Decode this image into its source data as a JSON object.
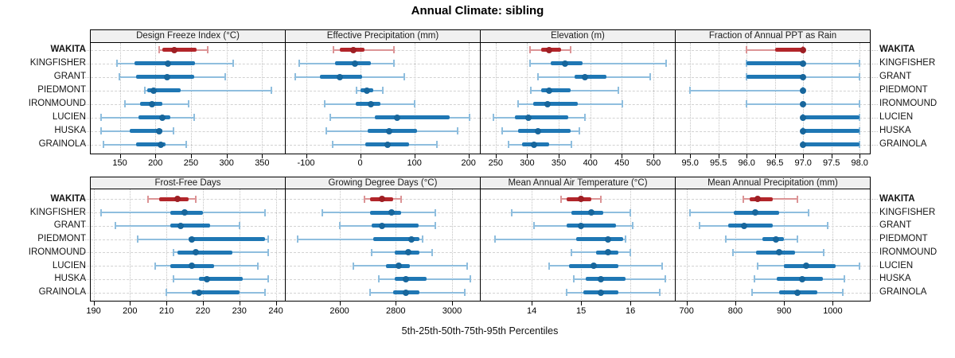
{
  "chart_data": {
    "type": "dotplot",
    "title": "Annual Climate: sibling",
    "caption": "5th-25th-50th-75th-95th Percentiles",
    "percentiles": [
      5,
      25,
      50,
      75,
      95
    ],
    "stations": [
      "WAKITA",
      "KINGFISHER",
      "GRANT",
      "PIEDMONT",
      "IRONMOUND",
      "LUCIEN",
      "HUSKA",
      "GRAINOLA"
    ],
    "highlight_station": "WAKITA",
    "legend_position": "none",
    "grid": "dotted",
    "colors": {
      "highlight": "#B2252A",
      "highlight_light": "#DC9496",
      "highlight_dot": "#9E1F24",
      "normal": "#1F77B4",
      "normal_light": "#8FBEDE",
      "normal_dot": "#17669C",
      "header_bg": "#F0F0F0",
      "border": "#000000"
    },
    "panel_rows": [
      {
        "panels": [
          {
            "title": "Design Freeze Index (°C)",
            "xlim": [
              108,
              382
            ],
            "ticks": [
              150,
              200,
              250,
              300,
              350
            ],
            "tick_labels": [
              "150",
              "200",
              "250",
              "300",
              "350"
            ],
            "values": [
              [
                205,
                210,
                227,
                258,
                273
              ],
              [
                146,
                171,
                218,
                256,
                309
              ],
              [
                149,
                173,
                217,
                254,
                298
              ],
              [
                185,
                188,
                198,
                236,
                363
              ],
              [
                157,
                178,
                195,
                210,
                247
              ],
              [
                124,
                176,
                210,
                221,
                254
              ],
              [
                124,
                164,
                205,
                210,
                225
              ],
              [
                127,
                173,
                208,
                214,
                243
              ]
            ]
          },
          {
            "title": "Effective Precipitation (mm)",
            "xlim": [
              -139,
              221
            ],
            "ticks": [
              -100,
              0,
              100,
              200
            ],
            "tick_labels": [
              "-100",
              "0",
              "100",
              "200"
            ],
            "values": [
              [
                -50,
                -38,
                -13,
                8,
                62
              ],
              [
                -113,
                -47,
                -10,
                20,
                62
              ],
              [
                -120,
                -75,
                -38,
                4,
                82
              ],
              [
                -7,
                0,
                12,
                24,
                42
              ],
              [
                -65,
                -8,
                19,
                37,
                100
              ],
              [
                -55,
                27,
                68,
                165,
                202
              ],
              [
                -62,
                14,
                53,
                105,
                180
              ],
              [
                -51,
                9,
                50,
                90,
                142
              ]
            ]
          },
          {
            "title": "Elevation (m)",
            "xlim": [
              225,
              534
            ],
            "ticks": [
              250,
              300,
              350,
              400,
              450,
              500
            ],
            "tick_labels": [
              "250",
              "300",
              "350",
              "400",
              "450",
              "500"
            ],
            "values": [
              [
                304,
                322,
                335,
                354,
                369
              ],
              [
                305,
                337,
                360,
                388,
                520
              ],
              [
                317,
                375,
                392,
                425,
                495
              ],
              [
                306,
                322,
                335,
                369,
                445
              ],
              [
                285,
                310,
                332,
                380,
                451
              ],
              [
                247,
                280,
                302,
                365,
                392
              ],
              [
                260,
                285,
                317,
                369,
                383
              ],
              [
                270,
                292,
                311,
                335,
                370
              ]
            ]
          },
          {
            "title": "Fraction of Annual PPT as Rain",
            "xlim": [
              94.73,
              98.18
            ],
            "ticks": [
              95.0,
              95.5,
              96.0,
              96.5,
              97.0,
              97.5,
              98.0
            ],
            "tick_labels": [
              "95.0",
              "95.5",
              "96.0",
              "96.5",
              "97.0",
              "97.5",
              "98.0"
            ],
            "values": [
              [
                96,
                96.5,
                97,
                97,
                97
              ],
              [
                96,
                96,
                97,
                97,
                98
              ],
              [
                96,
                96,
                97,
                97,
                98
              ],
              [
                95,
                97,
                97,
                97,
                97
              ],
              [
                96,
                97,
                97,
                97,
                98
              ],
              [
                97,
                97,
                97,
                98,
                98
              ],
              [
                97,
                97,
                97,
                98,
                98
              ],
              [
                97,
                97,
                97,
                98,
                98
              ]
            ]
          }
        ]
      },
      {
        "panels": [
          {
            "title": "Frost-Free Days",
            "xlim": [
              189,
              242.5
            ],
            "ticks": [
              190,
              200,
              210,
              220,
              230,
              240
            ],
            "tick_labels": [
              "190",
              "200",
              "210",
              "220",
              "230",
              "240"
            ],
            "values": [
              [
                205,
                208,
                213,
                216,
                218
              ],
              [
                192,
                211,
                215,
                220,
                237
              ],
              [
                196,
                211,
                214,
                222,
                230
              ],
              [
                202,
                216,
                217,
                237,
                238
              ],
              [
                212,
                213,
                218,
                228,
                238
              ],
              [
                207,
                211,
                217,
                223,
                235
              ],
              [
                212,
                219,
                221,
                231,
                238
              ],
              [
                210,
                217,
                219,
                230,
                237
              ]
            ]
          },
          {
            "title": "Growing Degree Days (°C)",
            "xlim": [
              2406,
              3099
            ],
            "ticks": [
              2600,
              2800,
              3000
            ],
            "tick_labels": [
              "2600",
              "2800",
              "3000"
            ],
            "values": [
              [
                2690,
                2710,
                2750,
                2790,
                2820
              ],
              [
                2540,
                2710,
                2785,
                2820,
                2940
              ],
              [
                2600,
                2715,
                2750,
                2880,
                2940
              ],
              [
                2450,
                2720,
                2855,
                2885,
                2895
              ],
              [
                2715,
                2795,
                2845,
                2885,
                2930
              ],
              [
                2650,
                2765,
                2810,
                2850,
                3055
              ],
              [
                2740,
                2795,
                2835,
                2910,
                3065
              ],
              [
                2710,
                2790,
                2835,
                2885,
                3045
              ]
            ]
          },
          {
            "title": "Mean Annual Air Temperature (°C)",
            "xlim": [
              12.95,
              16.9
            ],
            "ticks": [
              14,
              15,
              16
            ],
            "tick_labels": [
              "14",
              "15",
              "16"
            ],
            "values": [
              [
                14.6,
                14.7,
                15.0,
                15.2,
                15.4
              ],
              [
                13.6,
                14.8,
                15.2,
                15.45,
                16.0
              ],
              [
                14.05,
                14.7,
                15.0,
                15.7,
                16.05
              ],
              [
                13.25,
                14.9,
                15.55,
                15.85,
                15.9
              ],
              [
                14.8,
                15.3,
                15.55,
                15.75,
                16.0
              ],
              [
                14.35,
                14.75,
                15.25,
                15.75,
                16.65
              ],
              [
                14.85,
                15.1,
                15.4,
                15.9,
                16.7
              ],
              [
                14.7,
                15.05,
                15.4,
                15.75,
                16.6
              ]
            ]
          },
          {
            "title": "Mean Annual Precipitation (mm)",
            "xlim": [
              676,
              1076
            ],
            "ticks": [
              700,
              800,
              900,
              1000
            ],
            "tick_labels": [
              "700",
              "800",
              "900",
              "1000"
            ],
            "values": [
              [
                817,
                829,
                845,
                877,
                927
              ],
              [
                707,
                797,
                841,
                890,
                950
              ],
              [
                727,
                786,
                818,
                877,
                990
              ],
              [
                780,
                855,
                883,
                900,
                927
              ],
              [
                795,
                842,
                890,
                923,
                982
              ],
              [
                845,
                900,
                945,
                1005,
                1055
              ],
              [
                840,
                885,
                938,
                980,
                1023
              ],
              [
                835,
                890,
                928,
                968,
                1020
              ]
            ]
          }
        ]
      }
    ]
  }
}
